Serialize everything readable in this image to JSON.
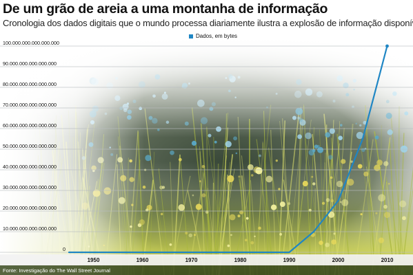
{
  "title": "De um grão de areia a uma montanha de informação",
  "subtitle": "Cronologia dos dados digitais que o mundo processa diariamente ilustra a explosão de informação disponível",
  "source": "Fonte: Investigação do The Wall Street Journal",
  "colors": {
    "line": "#1f86c4",
    "legend_swatch": "#1f86c4",
    "grid": "#b8bcc0"
  },
  "chart_data": {
    "type": "line",
    "title": "De um grão de areia a uma montanha de informação",
    "subtitle": "Cronologia dos dados digitais que o mundo processa diariamente ilustra a explosão de informação disponível",
    "xlabel": "",
    "ylabel": "",
    "legend_position": "top",
    "grid": true,
    "x_ticks": [
      "1950",
      "1960",
      "1970",
      "1980",
      "1990",
      "2000",
      "2010"
    ],
    "y_ticks": [
      "100.000.000.000.000.000",
      "90.000.000.000.000.000",
      "80.000.000.000.000.000",
      "70.000.000.000.000.000",
      "60.000.000.000.000.000",
      "50.000.000.000.000.000",
      "40.000.000.000.000.000",
      "30.000.000.000.000.000",
      "20.000.000.000.000.000",
      "10.000.000.000.000.000",
      "0"
    ],
    "xlim": [
      1945,
      2015
    ],
    "ylim": [
      0,
      100000000000000000
    ],
    "series": [
      {
        "name": "Dados, em bytes",
        "x": [
          1945,
          1950,
          1960,
          1970,
          1980,
          1990,
          1995,
          2000,
          2005,
          2010
        ],
        "y": [
          0,
          0,
          0,
          0,
          0,
          0,
          10000000000000000,
          25000000000000000,
          55000000000000000,
          100000000000000000
        ]
      }
    ]
  }
}
